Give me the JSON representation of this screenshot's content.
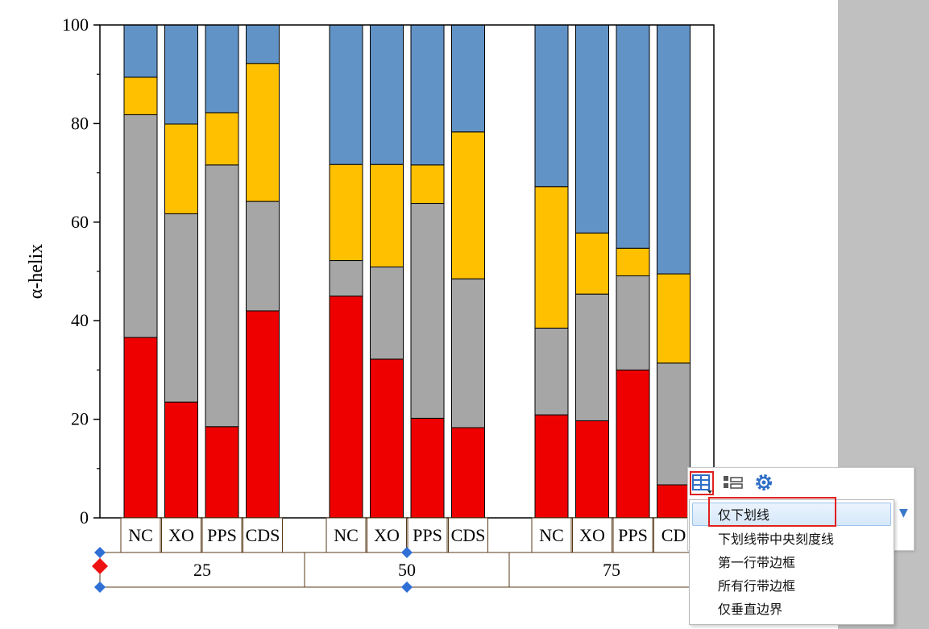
{
  "chart_data": {
    "type": "bar",
    "stacked": true,
    "ylabel": "α-helix",
    "ylim": [
      0,
      100
    ],
    "yticks": [
      "0",
      "20",
      "40",
      "60",
      "80",
      "100"
    ],
    "groups": [
      {
        "label": "25",
        "categories": [
          "NC",
          "AXO",
          "PPS",
          "CDS"
        ]
      },
      {
        "label": "50",
        "categories": [
          "NC",
          "AXO",
          "PPS",
          "CDS"
        ]
      },
      {
        "label": "75",
        "categories": [
          "NC",
          "AXO",
          "PPS",
          "CDS"
        ]
      }
    ],
    "category_display": [
      "NC",
      "​XO",
      "PPS",
      "CDS",
      "NC",
      "​XO",
      "PPS",
      "CDS",
      "NC",
      "​XO",
      "PPS",
      "CD"
    ],
    "series": [
      {
        "color": "#ee0000",
        "values": [
          36.6,
          23.5,
          18.5,
          42.0,
          45.0,
          32.2,
          20.2,
          18.3,
          20.9,
          19.7,
          30.0,
          6.7
        ]
      },
      {
        "color": "#a6a6a6",
        "values": [
          45.2,
          38.2,
          53.1,
          22.2,
          7.2,
          18.7,
          43.6,
          30.2,
          17.6,
          25.7,
          19.1,
          24.7
        ]
      },
      {
        "color": "#ffc000",
        "values": [
          7.6,
          18.2,
          10.6,
          28.0,
          19.5,
          20.8,
          7.8,
          29.8,
          28.7,
          12.4,
          5.6,
          18.1
        ]
      },
      {
        "color": "#6293c6",
        "values": [
          10.6,
          20.1,
          17.8,
          7.8,
          28.3,
          28.3,
          28.4,
          21.7,
          32.8,
          42.2,
          45.3,
          50.5
        ]
      }
    ]
  },
  "popup": {
    "icons": [
      "table-style-icon",
      "layout-icon",
      "gear-icon"
    ],
    "menu_items": [
      "仅下划线",
      "下划线带中央刻度线",
      "第一行带边框",
      "所有行带边框",
      "仅垂直边界"
    ],
    "selected_index": 0
  }
}
